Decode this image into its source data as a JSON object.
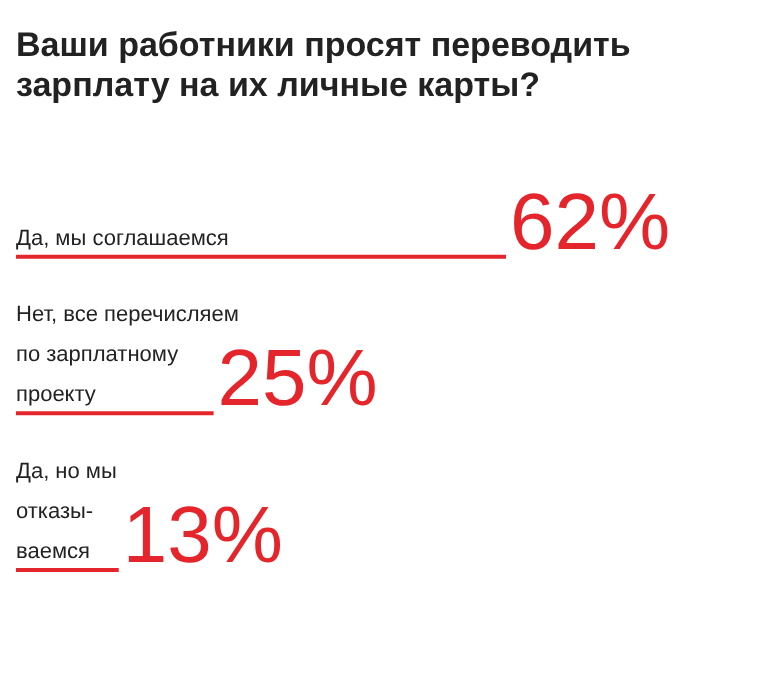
{
  "chart_data": {
    "type": "bar",
    "orientation": "horizontal",
    "title": "Ваши работники просят переводить\nзарплату на их личные карты?",
    "categories": [
      "Да, мы соглашаемся",
      "Нет, все перечисляем\nпо зарплатному\nпроекту",
      "Да, но мы\nотказы-\nваемся"
    ],
    "values": [
      62,
      25,
      13
    ],
    "color": "#e4262c",
    "value_labels": [
      "62%",
      "25%",
      "13%"
    ]
  }
}
